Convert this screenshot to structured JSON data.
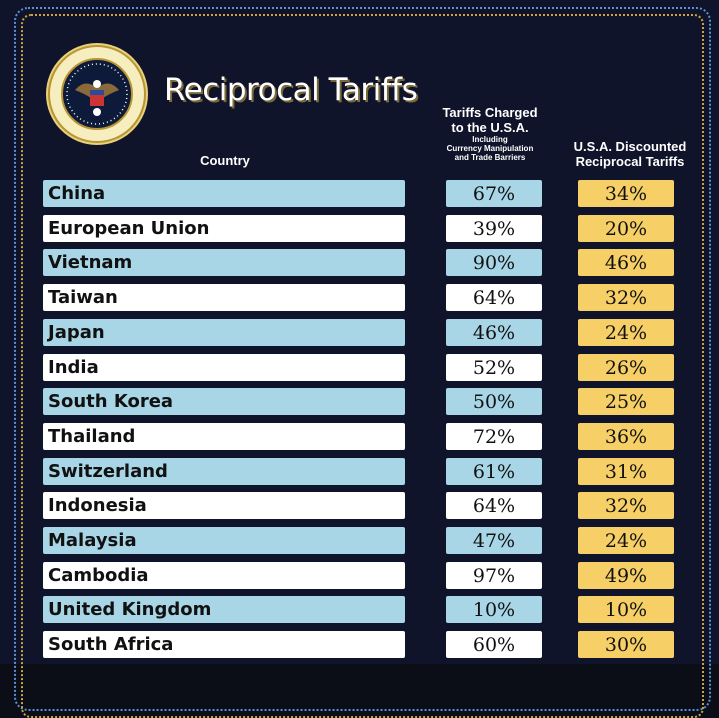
{
  "header": {
    "title": "Reciprocal Tariffs",
    "seal_text": "SEAL OF THE PRESIDENT OF THE UNITED STATES"
  },
  "columns": {
    "country": "Country",
    "charged_line1": "Tariffs Charged",
    "charged_line2": "to the U.S.A.",
    "charged_note1": "Including",
    "charged_note2": "Currency Manipulation",
    "charged_note3": "and Trade Barriers",
    "discounted_line1": "U.S.A. Discounted",
    "discounted_line2": "Reciprocal Tariffs"
  },
  "colors": {
    "background": "#10142a",
    "row_alt": "#a8d6e6",
    "discounted": "#f6cf66"
  },
  "chart_data": {
    "type": "table",
    "title": "Reciprocal Tariffs",
    "headers": [
      "Country",
      "Tariffs Charged to the U.S.A. Including Currency Manipulation and Trade Barriers",
      "U.S.A. Discounted Reciprocal Tariffs"
    ],
    "rows": [
      {
        "country": "China",
        "charged": "67%",
        "discounted": "34%"
      },
      {
        "country": "European Union",
        "charged": "39%",
        "discounted": "20%"
      },
      {
        "country": "Vietnam",
        "charged": "90%",
        "discounted": "46%"
      },
      {
        "country": "Taiwan",
        "charged": "64%",
        "discounted": "32%"
      },
      {
        "country": "Japan",
        "charged": "46%",
        "discounted": "24%"
      },
      {
        "country": "India",
        "charged": "52%",
        "discounted": "26%"
      },
      {
        "country": "South Korea",
        "charged": "50%",
        "discounted": "25%"
      },
      {
        "country": "Thailand",
        "charged": "72%",
        "discounted": "36%"
      },
      {
        "country": "Switzerland",
        "charged": "61%",
        "discounted": "31%"
      },
      {
        "country": "Indonesia",
        "charged": "64%",
        "discounted": "32%"
      },
      {
        "country": "Malaysia",
        "charged": "47%",
        "discounted": "24%"
      },
      {
        "country": "Cambodia",
        "charged": "97%",
        "discounted": "49%"
      },
      {
        "country": "United Kingdom",
        "charged": "10%",
        "discounted": "10%"
      },
      {
        "country": "South Africa",
        "charged": "60%",
        "discounted": "30%"
      }
    ]
  }
}
